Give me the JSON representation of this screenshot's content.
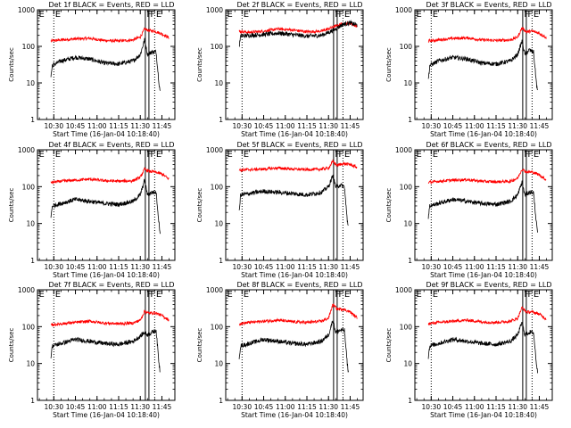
{
  "chart_data": {
    "type": "line",
    "y_scale": "log",
    "ylim": [
      1,
      1000
    ],
    "ytick_labels": [
      "1",
      "10",
      "100",
      "1000"
    ],
    "xlim": [
      "10:18:40",
      "11:54:00"
    ],
    "xtick_labels": [
      "10:30",
      "10:45",
      "11:00",
      "11:15",
      "11:30",
      "11:45"
    ],
    "xlabel": "Start Time (16-Jan-04 10:18:40)",
    "ylabel": "Counts/sec",
    "series_colors": {
      "events": "#000000",
      "lld": "#ff0000"
    },
    "markers": [
      {
        "label": "E",
        "time": "10:18:40",
        "style": "dotted"
      },
      {
        "label": "E",
        "time": "10:30:00",
        "style": "dotted"
      },
      {
        "label": "F",
        "time": "11:33:30",
        "style": "solid"
      },
      {
        "label": "F",
        "time": "11:36:00",
        "style": "solid"
      },
      {
        "label": "E",
        "time": "11:40:00",
        "style": "dotted"
      }
    ],
    "panels": [
      {
        "title": "Det 1f BLACK = Events, RED = LLD",
        "lld": {
          "times": [
            "10:28",
            "10:35",
            "10:45",
            "10:55",
            "11:05",
            "11:15",
            "11:25",
            "11:30",
            "11:33",
            "11:36",
            "11:40",
            "11:45",
            "11:50"
          ],
          "values": [
            140,
            150,
            160,
            165,
            145,
            140,
            150,
            180,
            300,
            270,
            260,
            220,
            170
          ]
        },
        "events": {
          "times": [
            "10:28",
            "10:29",
            "10:35",
            "10:45",
            "10:55",
            "11:05",
            "11:15",
            "11:25",
            "11:30",
            "11:33",
            "11:35",
            "11:38",
            "11:41",
            "11:43",
            "11:44"
          ],
          "values": [
            15,
            30,
            40,
            50,
            45,
            35,
            33,
            40,
            60,
            150,
            60,
            70,
            70,
            10,
            5
          ]
        }
      },
      {
        "title": "Det 2f BLACK = Events, RED = LLD",
        "lld": {
          "times": [
            "10:28",
            "10:35",
            "10:45",
            "10:55",
            "11:05",
            "11:15",
            "11:25",
            "11:30",
            "11:35",
            "11:40",
            "11:45",
            "11:50"
          ],
          "values": [
            260,
            240,
            260,
            300,
            280,
            250,
            260,
            300,
            360,
            420,
            430,
            350
          ]
        },
        "events": {
          "times": [
            "10:28",
            "10:29",
            "10:35",
            "10:45",
            "10:55",
            "11:05",
            "11:15",
            "11:25",
            "11:30",
            "11:35",
            "11:40",
            "11:45",
            "11:50"
          ],
          "values": [
            100,
            190,
            200,
            210,
            230,
            210,
            190,
            200,
            240,
            300,
            400,
            440,
            380
          ]
        }
      },
      {
        "title": "Det 3f BLACK = Events, RED = LLD",
        "lld": {
          "times": [
            "10:28",
            "10:35",
            "10:45",
            "10:55",
            "11:05",
            "11:15",
            "11:25",
            "11:30",
            "11:33",
            "11:36",
            "11:40",
            "11:45",
            "11:50"
          ],
          "values": [
            140,
            150,
            165,
            170,
            150,
            145,
            150,
            180,
            320,
            250,
            260,
            230,
            170
          ]
        },
        "events": {
          "times": [
            "10:28",
            "10:29",
            "10:35",
            "10:45",
            "10:55",
            "11:05",
            "11:15",
            "11:25",
            "11:30",
            "11:33",
            "11:35",
            "11:38",
            "11:41",
            "11:43",
            "11:44"
          ],
          "values": [
            12,
            30,
            40,
            50,
            45,
            35,
            33,
            40,
            60,
            140,
            60,
            80,
            70,
            10,
            5
          ]
        }
      },
      {
        "title": "Det 4f BLACK = Events, RED = LLD",
        "lld": {
          "times": [
            "10:28",
            "10:35",
            "10:45",
            "10:55",
            "11:05",
            "11:15",
            "11:25",
            "11:30",
            "11:33",
            "11:36",
            "11:40",
            "11:45",
            "11:50"
          ],
          "values": [
            130,
            140,
            150,
            160,
            145,
            140,
            145,
            180,
            300,
            260,
            250,
            220,
            160
          ]
        },
        "events": {
          "times": [
            "10:28",
            "10:29",
            "10:35",
            "10:45",
            "10:55",
            "11:05",
            "11:15",
            "11:25",
            "11:30",
            "11:33",
            "11:35",
            "11:38",
            "11:41",
            "11:43",
            "11:44"
          ],
          "values": [
            15,
            30,
            35,
            45,
            40,
            35,
            33,
            40,
            60,
            150,
            60,
            70,
            70,
            10,
            5
          ]
        }
      },
      {
        "title": "Det 5f BLACK = Events, RED = LLD",
        "lld": {
          "times": [
            "10:28",
            "10:35",
            "10:45",
            "10:55",
            "11:05",
            "11:15",
            "11:25",
            "11:30",
            "11:33",
            "11:36",
            "11:40",
            "11:45",
            "11:50"
          ],
          "values": [
            280,
            290,
            300,
            320,
            300,
            290,
            300,
            320,
            480,
            380,
            420,
            400,
            330
          ]
        },
        "events": {
          "times": [
            "10:28",
            "10:29",
            "10:35",
            "10:45",
            "10:55",
            "11:05",
            "11:15",
            "11:25",
            "11:30",
            "11:33",
            "11:35",
            "11:38",
            "11:41",
            "11:43",
            "11:44"
          ],
          "values": [
            20,
            60,
            65,
            75,
            70,
            65,
            60,
            70,
            100,
            200,
            100,
            110,
            100,
            12,
            8
          ]
        }
      },
      {
        "title": "Det 6f BLACK = Events, RED = LLD",
        "lld": {
          "times": [
            "10:28",
            "10:35",
            "10:45",
            "10:55",
            "11:05",
            "11:15",
            "11:25",
            "11:30",
            "11:33",
            "11:36",
            "11:40",
            "11:45",
            "11:50"
          ],
          "values": [
            130,
            140,
            150,
            155,
            140,
            135,
            140,
            170,
            300,
            250,
            250,
            210,
            150
          ]
        },
        "events": {
          "times": [
            "10:28",
            "10:29",
            "10:35",
            "10:45",
            "10:55",
            "11:05",
            "11:15",
            "11:25",
            "11:30",
            "11:33",
            "11:35",
            "11:38",
            "11:41",
            "11:43",
            "11:44"
          ],
          "values": [
            15,
            30,
            35,
            45,
            40,
            35,
            33,
            40,
            60,
            130,
            60,
            70,
            70,
            10,
            5
          ]
        }
      },
      {
        "title": "Det 7f BLACK = Events, RED = LLD",
        "lld": {
          "times": [
            "10:28",
            "10:35",
            "10:45",
            "10:55",
            "11:05",
            "11:15",
            "11:25",
            "11:30",
            "11:33",
            "11:36",
            "11:40",
            "11:45",
            "11:50"
          ],
          "values": [
            110,
            120,
            130,
            140,
            125,
            120,
            125,
            150,
            260,
            230,
            240,
            200,
            150
          ]
        },
        "events": {
          "times": [
            "10:28",
            "10:29",
            "10:35",
            "10:45",
            "10:55",
            "11:05",
            "11:15",
            "11:25",
            "11:30",
            "11:33",
            "11:35",
            "11:38",
            "11:41",
            "11:43",
            "11:44"
          ],
          "values": [
            15,
            30,
            35,
            45,
            40,
            35,
            33,
            40,
            55,
            70,
            60,
            70,
            80,
            10,
            5
          ]
        }
      },
      {
        "title": "Det 8f BLACK = Events, RED = LLD",
        "lld": {
          "times": [
            "10:28",
            "10:35",
            "10:45",
            "10:55",
            "11:05",
            "11:15",
            "11:25",
            "11:30",
            "11:33",
            "11:36",
            "11:40",
            "11:45",
            "11:50"
          ],
          "values": [
            120,
            130,
            140,
            150,
            135,
            130,
            140,
            170,
            400,
            300,
            300,
            250,
            170
          ]
        },
        "events": {
          "times": [
            "10:28",
            "10:29",
            "10:35",
            "10:45",
            "10:55",
            "11:05",
            "11:15",
            "11:25",
            "11:30",
            "11:33",
            "11:35",
            "11:38",
            "11:41",
            "11:43",
            "11:44"
          ],
          "values": [
            15,
            30,
            35,
            45,
            40,
            35,
            33,
            40,
            60,
            150,
            70,
            80,
            80,
            10,
            5
          ]
        }
      },
      {
        "title": "Det 9f BLACK = Events, RED = LLD",
        "lld": {
          "times": [
            "10:28",
            "10:35",
            "10:45",
            "10:55",
            "11:05",
            "11:15",
            "11:25",
            "11:30",
            "11:33",
            "11:36",
            "11:40",
            "11:45",
            "11:50"
          ],
          "values": [
            120,
            130,
            140,
            150,
            135,
            130,
            140,
            170,
            330,
            250,
            250,
            220,
            160
          ]
        },
        "events": {
          "times": [
            "10:28",
            "10:29",
            "10:35",
            "10:45",
            "10:55",
            "11:05",
            "11:15",
            "11:25",
            "11:30",
            "11:33",
            "11:35",
            "11:38",
            "11:41",
            "11:43",
            "11:44"
          ],
          "values": [
            15,
            30,
            35,
            45,
            40,
            35,
            33,
            40,
            60,
            130,
            60,
            70,
            70,
            10,
            5
          ]
        }
      }
    ]
  }
}
